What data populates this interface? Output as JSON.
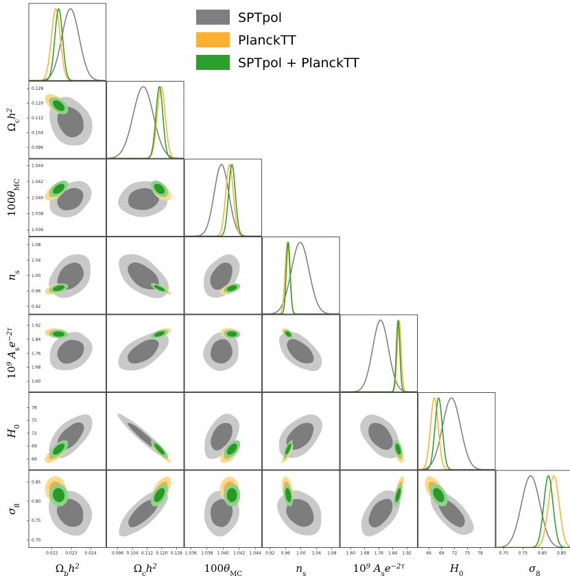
{
  "chart_data": {
    "type": "triangle-corner-plot",
    "legend": [
      {
        "name": "SPTpol",
        "color": "#7f7f7f"
      },
      {
        "name": "PlanckTT",
        "color": "#ffb02e"
      },
      {
        "name": "SPTpol + PlanckTT",
        "color": "#2ca02c"
      }
    ],
    "legend_position": "top-right",
    "parameters": [
      {
        "id": "ombh2",
        "label": "Ω_b h^2",
        "range": [
          0.0208,
          0.0248
        ],
        "ticks": [
          "0.022",
          "0.023",
          "0.024"
        ],
        "tick_values": [
          0.022,
          0.023,
          0.024
        ],
        "sptpol": [
          0.02296,
          0.00045
        ],
        "planck": [
          0.0222,
          0.00023
        ],
        "combined": [
          0.02235,
          0.0002
        ]
      },
      {
        "id": "omch2",
        "label": "Ω_c h^2",
        "range": [
          0.09,
          0.132
        ],
        "ticks": [
          "0.096",
          "0.104",
          "0.112",
          "0.120",
          "0.128"
        ],
        "tick_values": [
          0.096,
          0.104,
          0.112,
          0.12,
          0.128
        ],
        "sptpol": [
          0.1099,
          0.0055
        ],
        "planck": [
          0.1197,
          0.0022
        ],
        "combined": [
          0.1187,
          0.0019
        ]
      },
      {
        "id": "theta",
        "label": "100θ_MC",
        "range": [
          1.0352,
          1.0448
        ],
        "ticks": [
          "1.036",
          "1.038",
          "1.040",
          "1.042",
          "1.044"
        ],
        "tick_values": [
          1.036,
          1.038,
          1.04,
          1.042,
          1.044
        ],
        "sptpol": [
          1.0398,
          0.0009
        ],
        "planck": [
          1.0408,
          0.00047
        ],
        "combined": [
          1.0411,
          0.00042
        ]
      },
      {
        "id": "ns",
        "label": "n_s",
        "range": [
          0.9,
          1.1
        ],
        "ticks": [
          "0.92",
          "0.96",
          "1.00",
          "1.04",
          "1.08"
        ],
        "tick_values": [
          0.92,
          0.96,
          1.0,
          1.04,
          1.08
        ],
        "sptpol": [
          0.998,
          0.023
        ],
        "planck": [
          0.965,
          0.006
        ],
        "combined": [
          0.967,
          0.005
        ]
      },
      {
        "id": "As",
        "label": "10^9 A_s e^{-2τ}",
        "range": [
          1.54,
          1.98
        ],
        "ticks": [
          "1.60",
          "1.68",
          "1.76",
          "1.84",
          "1.92"
        ],
        "tick_values": [
          1.6,
          1.68,
          1.76,
          1.84,
          1.92
        ],
        "sptpol": [
          1.77,
          0.045
        ],
        "planck": [
          1.876,
          0.011
        ],
        "combined": [
          1.87,
          0.01
        ]
      },
      {
        "id": "H0",
        "label": "H_0",
        "range": [
          63.5,
          81.5
        ],
        "ticks": [
          "66",
          "69",
          "72",
          "75",
          "78"
        ],
        "tick_values": [
          66,
          69,
          72,
          75,
          78
        ],
        "sptpol": [
          71.3,
          2.1
        ],
        "planck": [
          67.3,
          0.9
        ],
        "combined": [
          68.3,
          0.85
        ]
      },
      {
        "id": "sigma8",
        "label": "σ_8",
        "range": [
          0.68,
          0.88
        ],
        "ticks": [
          "0.70",
          "0.75",
          "0.80",
          "0.85"
        ],
        "tick_values": [
          0.7,
          0.75,
          0.8,
          0.85
        ],
        "sptpol": [
          0.77,
          0.024
        ],
        "planck": [
          0.83,
          0.014
        ],
        "combined": [
          0.816,
          0.012
        ]
      }
    ],
    "correlations_sptpol": [
      [
        1,
        -0.25,
        0.3,
        0.35,
        0.25,
        0.6,
        -0.2
      ],
      [
        -0.25,
        1,
        0.1,
        -0.5,
        0.55,
        -0.95,
        0.75
      ],
      [
        0.3,
        0.1,
        1,
        0.35,
        0.05,
        0.45,
        0.1
      ],
      [
        0.35,
        -0.5,
        0.35,
        1,
        -0.55,
        0.5,
        -0.25
      ],
      [
        0.25,
        0.55,
        0.05,
        -0.55,
        1,
        -0.45,
        0.5
      ],
      [
        0.6,
        -0.95,
        0.45,
        0.5,
        -0.45,
        1,
        -0.7
      ],
      [
        -0.2,
        0.75,
        0.1,
        -0.25,
        0.5,
        -0.7,
        1
      ]
    ],
    "correlations_planck": [
      [
        1,
        -0.55,
        0.6,
        0.5,
        -0.1,
        0.7,
        -0.1
      ],
      [
        -0.55,
        1,
        -0.5,
        -0.85,
        0.6,
        -0.95,
        0.6
      ],
      [
        0.6,
        -0.5,
        1,
        0.5,
        -0.1,
        0.6,
        0.0
      ],
      [
        0.5,
        -0.85,
        0.5,
        1,
        -0.5,
        0.85,
        -0.4
      ],
      [
        -0.1,
        0.6,
        -0.1,
        -0.5,
        1,
        -0.5,
        0.7
      ],
      [
        0.7,
        -0.95,
        0.6,
        0.85,
        -0.5,
        1,
        -0.5
      ],
      [
        -0.1,
        0.6,
        0.0,
        -0.4,
        0.7,
        -0.5,
        1
      ]
    ]
  }
}
